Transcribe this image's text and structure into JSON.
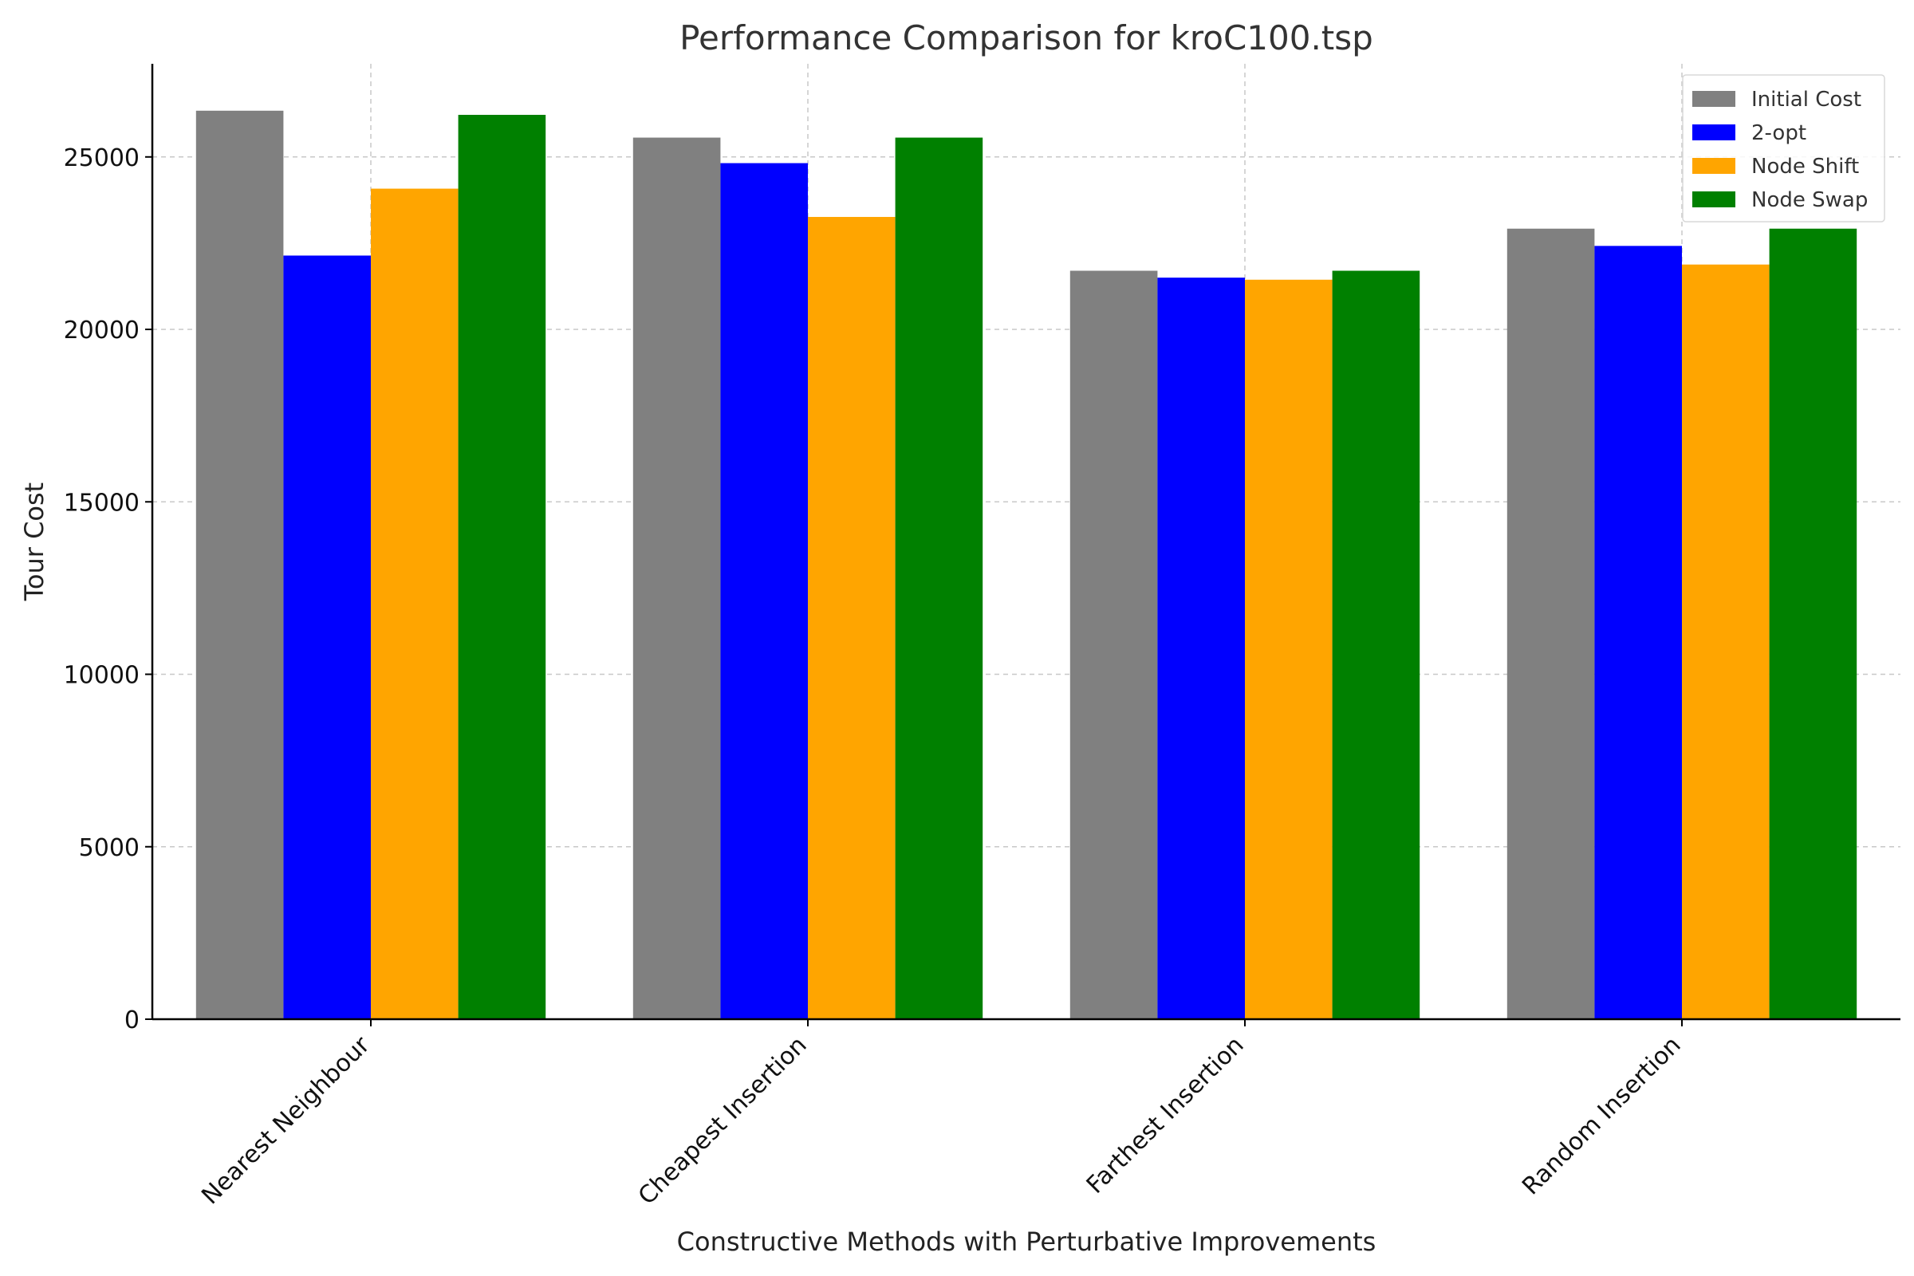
{
  "chart_data": {
    "type": "bar",
    "title": "Performance Comparison for kroC100.tsp",
    "xlabel": "Constructive Methods with Perturbative Improvements",
    "ylabel": "Tour Cost",
    "categories": [
      "Nearest Neighbour",
      "Cheapest Insertion",
      "Farthest Insertion",
      "Random Insertion"
    ],
    "series": [
      {
        "name": "Initial Cost",
        "color": "#808080",
        "values": [
          26340,
          25560,
          21700,
          22920
        ]
      },
      {
        "name": "2-opt",
        "color": "#0000ff",
        "values": [
          22140,
          24820,
          21500,
          22420
        ]
      },
      {
        "name": "Node Shift",
        "color": "#ffa500",
        "values": [
          24080,
          23260,
          21440,
          21880
        ]
      },
      {
        "name": "Node Swap",
        "color": "#008000",
        "values": [
          26220,
          25560,
          21700,
          22920
        ]
      }
    ],
    "ylim": [
      0,
      27700
    ],
    "yticks": [
      0,
      5000,
      10000,
      15000,
      20000,
      25000
    ],
    "grid": true,
    "legend_position": "top-right"
  }
}
